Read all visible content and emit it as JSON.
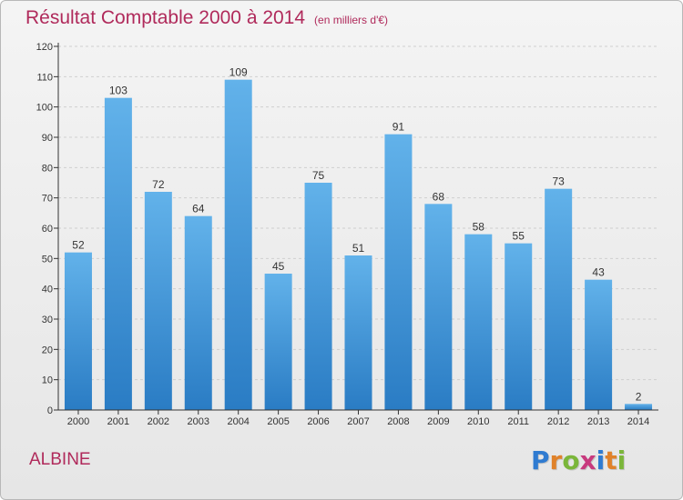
{
  "header": {
    "title": "Résultat Comptable 2000 à 2014",
    "unit": "(en milliers d'€)"
  },
  "commune": "ALBINE",
  "logo": {
    "text": "Proxiti",
    "letters": [
      {
        "ch": "P",
        "color": "#2f7bd1"
      },
      {
        "ch": "r",
        "color": "#e0822a"
      },
      {
        "ch": "o",
        "color": "#7bb63a"
      },
      {
        "ch": "x",
        "color": "#c83a7e"
      },
      {
        "ch": "i",
        "color": "#2f7bd1"
      },
      {
        "ch": "t",
        "color": "#e0822a"
      },
      {
        "ch": "i",
        "color": "#7bb63a"
      }
    ]
  },
  "colors": {
    "title": "#b02a5b",
    "bar_top": "#62b2ea",
    "bar_bottom": "#2a7cc4",
    "axis": "#333333",
    "grid": "#cfcfcf"
  },
  "chart_data": {
    "type": "bar",
    "categories": [
      "2000",
      "2001",
      "2002",
      "2003",
      "2004",
      "2005",
      "2006",
      "2007",
      "2008",
      "2009",
      "2010",
      "2011",
      "2012",
      "2013",
      "2014"
    ],
    "values": [
      52,
      103,
      72,
      64,
      109,
      45,
      75,
      51,
      91,
      68,
      58,
      55,
      73,
      43,
      2
    ],
    "ylim": [
      0,
      120
    ],
    "yticks": [
      0,
      10,
      20,
      30,
      40,
      50,
      60,
      70,
      80,
      90,
      100,
      110,
      120
    ],
    "grid": "horizontal dashed",
    "data_labels": true
  }
}
